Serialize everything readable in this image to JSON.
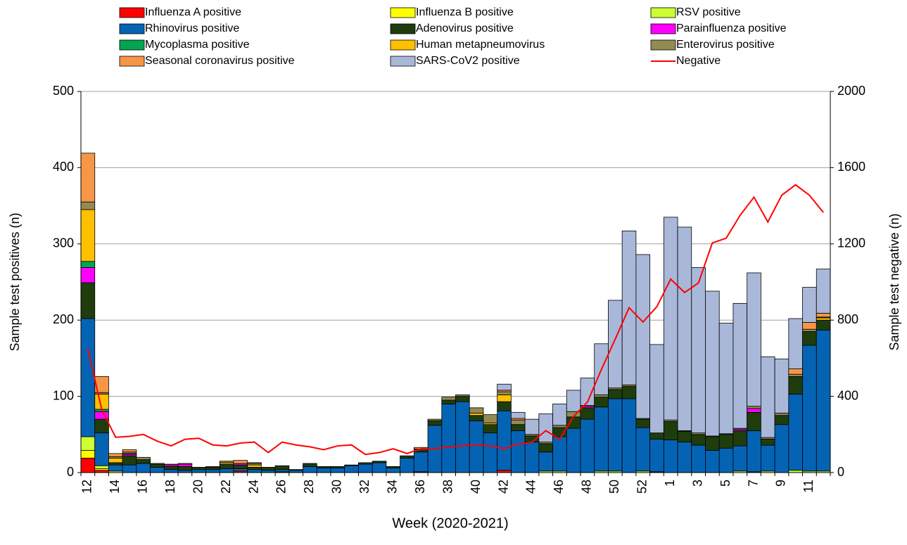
{
  "chart_data": {
    "type": "bar",
    "stacked": true,
    "xlabel": "Week (2020-2021)",
    "ylabel": "Sample test positives (n)",
    "y2label": "Sample test negative (n)",
    "categories": [
      "12",
      null,
      "14",
      null,
      "16",
      null,
      "18",
      null,
      "20",
      null,
      "22",
      null,
      "24",
      null,
      "26",
      null,
      "28",
      null,
      "30",
      null,
      "32",
      null,
      "34",
      null,
      "36",
      null,
      "38",
      null,
      "40",
      null,
      "42",
      null,
      "44",
      null,
      "46",
      null,
      "48",
      null,
      "50",
      null,
      "52",
      null,
      "1",
      null,
      "3",
      null,
      "5",
      null,
      "7",
      null,
      "9",
      null,
      "11",
      null
    ],
    "ylim": [
      0,
      500
    ],
    "yticks": [
      0,
      100,
      200,
      300,
      400,
      500
    ],
    "y2lim": [
      0,
      2000
    ],
    "y2ticks": [
      0,
      400,
      800,
      1200,
      1600,
      2000
    ],
    "grid": true,
    "series": [
      {
        "name": "Influenza A positive",
        "color": "#ff0000",
        "values": [
          19,
          3,
          0,
          0,
          0,
          0,
          0,
          0,
          0,
          0,
          0,
          2,
          0,
          0,
          1,
          0,
          0,
          0,
          0,
          0,
          0,
          0,
          0,
          0,
          1,
          0,
          0,
          0,
          0,
          0,
          3,
          0,
          0,
          0,
          0,
          0,
          0,
          0,
          0,
          0,
          0,
          1,
          0,
          0,
          0,
          0,
          0,
          0,
          0,
          0,
          0,
          0,
          0,
          0
        ]
      },
      {
        "name": "Influenza B positive",
        "color": "#ffff00",
        "values": [
          10,
          2,
          0,
          0,
          0,
          0,
          0,
          0,
          0,
          0,
          0,
          0,
          0,
          0,
          0,
          0,
          0,
          0,
          0,
          0,
          0,
          0,
          0,
          0,
          0,
          0,
          0,
          0,
          0,
          0,
          0,
          0,
          0,
          0,
          0,
          0,
          0,
          0,
          0,
          0,
          0,
          0,
          0,
          0,
          0,
          0,
          0,
          0,
          0,
          0,
          0,
          0,
          0,
          0
        ]
      },
      {
        "name": "RSV positive",
        "color": "#ccff33",
        "values": [
          18,
          4,
          2,
          0,
          0,
          0,
          0,
          0,
          0,
          0,
          0,
          0,
          0,
          0,
          0,
          0,
          0,
          0,
          0,
          0,
          0,
          0,
          0,
          0,
          0,
          0,
          0,
          0,
          0,
          0,
          0,
          0,
          0,
          2,
          2,
          0,
          0,
          2,
          2,
          0,
          2,
          0,
          0,
          0,
          0,
          0,
          0,
          2,
          1,
          2,
          0,
          3,
          2,
          2
        ]
      },
      {
        "name": "Rhinovirus positive",
        "color": "#0563b4",
        "values": [
          155,
          43,
          8,
          10,
          12,
          7,
          4,
          3,
          4,
          4,
          5,
          3,
          4,
          3,
          3,
          3,
          8,
          6,
          6,
          9,
          11,
          13,
          6,
          19,
          26,
          62,
          90,
          93,
          68,
          52,
          78,
          55,
          40,
          25,
          45,
          58,
          70,
          84,
          95,
          97,
          57,
          43,
          43,
          40,
          36,
          29,
          32,
          33,
          54,
          34,
          63,
          100,
          165,
          185
        ]
      },
      {
        "name": "Adenovirus positive",
        "color": "#1f3d0c",
        "values": [
          47,
          18,
          3,
          12,
          5,
          4,
          4,
          5,
          3,
          3,
          6,
          5,
          3,
          4,
          5,
          1,
          4,
          2,
          2,
          1,
          2,
          2,
          2,
          3,
          4,
          6,
          5,
          7,
          7,
          11,
          12,
          8,
          8,
          11,
          12,
          15,
          15,
          13,
          12,
          16,
          11,
          8,
          24,
          14,
          14,
          18,
          18,
          20,
          24,
          8,
          12,
          23,
          18,
          13
        ]
      },
      {
        "name": "Parainfluenza positive",
        "color": "#ff00ff",
        "values": [
          20,
          10,
          0,
          2,
          0,
          0,
          2,
          3,
          0,
          0,
          0,
          2,
          0,
          0,
          0,
          0,
          0,
          0,
          0,
          0,
          0,
          0,
          0,
          0,
          0,
          0,
          0,
          0,
          0,
          0,
          0,
          0,
          0,
          0,
          0,
          0,
          2,
          0,
          0,
          0,
          0,
          0,
          0,
          0,
          0,
          0,
          0,
          2,
          5,
          0,
          0,
          0,
          0,
          0
        ]
      },
      {
        "name": "Mycoplasma positive",
        "color": "#00a550",
        "values": [
          8,
          3,
          0,
          0,
          0,
          0,
          0,
          0,
          0,
          0,
          0,
          0,
          0,
          0,
          0,
          0,
          0,
          0,
          0,
          0,
          0,
          0,
          0,
          0,
          0,
          0,
          0,
          0,
          0,
          0,
          0,
          0,
          0,
          0,
          0,
          0,
          0,
          0,
          0,
          0,
          0,
          0,
          0,
          0,
          0,
          0,
          0,
          0,
          0,
          0,
          0,
          0,
          0,
          0
        ]
      },
      {
        "name": "Human metapneumovirus",
        "color": "#ffc000",
        "values": [
          68,
          20,
          6,
          1,
          0,
          0,
          0,
          0,
          0,
          0,
          2,
          0,
          3,
          0,
          0,
          0,
          0,
          0,
          0,
          0,
          0,
          0,
          0,
          0,
          0,
          0,
          0,
          0,
          3,
          2,
          9,
          0,
          0,
          0,
          0,
          0,
          0,
          0,
          0,
          0,
          0,
          0,
          0,
          0,
          0,
          0,
          0,
          0,
          0,
          0,
          0,
          0,
          0,
          3
        ]
      },
      {
        "name": "Enterovirus positive",
        "color": "#948a54",
        "values": [
          10,
          2,
          2,
          2,
          3,
          1,
          1,
          0,
          0,
          0,
          2,
          0,
          2,
          0,
          0,
          0,
          0,
          0,
          0,
          0,
          0,
          0,
          0,
          0,
          0,
          2,
          4,
          2,
          7,
          11,
          4,
          6,
          2,
          2,
          3,
          7,
          1,
          3,
          2,
          2,
          1,
          0,
          2,
          1,
          2,
          1,
          1,
          1,
          3,
          2,
          3,
          3,
          3,
          1
        ]
      },
      {
        "name": "Seasonal coronavirus positive",
        "color": "#f79646",
        "values": [
          64,
          21,
          4,
          3,
          0,
          0,
          0,
          1,
          0,
          1,
          0,
          4,
          1,
          0,
          0,
          0,
          0,
          0,
          0,
          0,
          0,
          0,
          0,
          0,
          2,
          0,
          0,
          0,
          0,
          0,
          2,
          2,
          0,
          0,
          0,
          0,
          0,
          0,
          0,
          0,
          0,
          0,
          0,
          0,
          0,
          0,
          0,
          0,
          0,
          0,
          0,
          7,
          9,
          5
        ]
      },
      {
        "name": "SARS-CoV2 positive",
        "color": "#a9b8d9",
        "values": [
          0,
          0,
          0,
          0,
          0,
          0,
          0,
          0,
          0,
          0,
          0,
          0,
          0,
          0,
          0,
          0,
          0,
          0,
          0,
          0,
          0,
          0,
          0,
          0,
          0,
          0,
          0,
          0,
          0,
          0,
          8,
          8,
          20,
          37,
          28,
          28,
          36,
          67,
          115,
          202,
          215,
          116,
          266,
          267,
          217,
          190,
          145,
          164,
          175,
          106,
          71,
          66,
          46,
          58
        ]
      },
      {
        "name": "Negative",
        "color": "#ff0000",
        "type": "line",
        "axis": "y2",
        "values": [
          650,
          330,
          185,
          190,
          200,
          165,
          140,
          175,
          180,
          145,
          140,
          155,
          160,
          105,
          160,
          145,
          135,
          120,
          140,
          145,
          95,
          105,
          125,
          100,
          125,
          125,
          135,
          140,
          145,
          140,
          125,
          150,
          160,
          220,
          175,
          295,
          370,
          540,
          700,
          865,
          790,
          870,
          1015,
          945,
          995,
          1205,
          1230,
          1350,
          1445,
          1315,
          1455,
          1510,
          1455,
          1365
        ]
      }
    ]
  }
}
